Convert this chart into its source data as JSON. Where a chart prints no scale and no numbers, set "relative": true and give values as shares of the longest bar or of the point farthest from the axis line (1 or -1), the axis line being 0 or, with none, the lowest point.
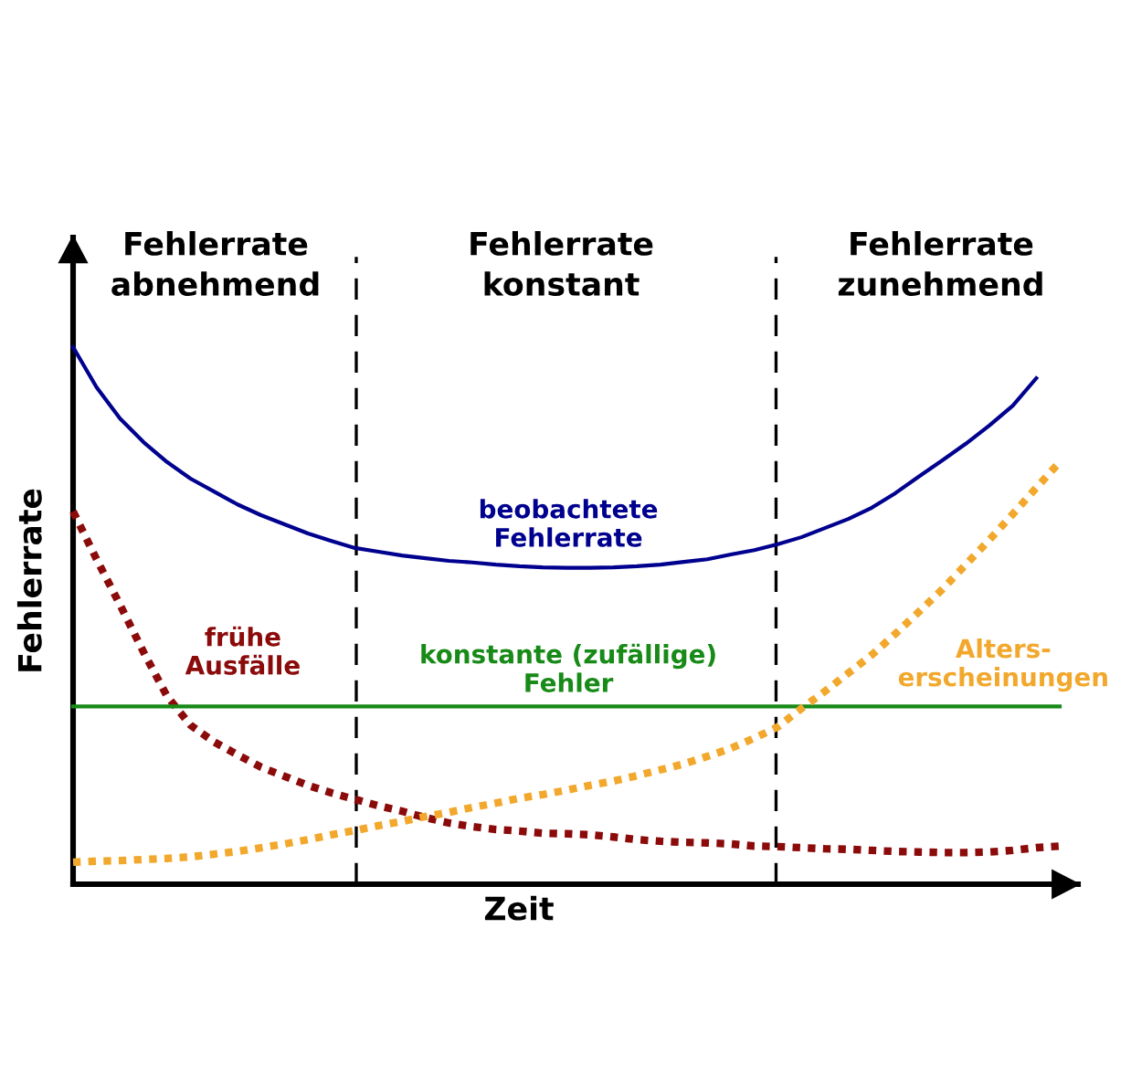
{
  "chart_data": {
    "type": "line",
    "relative": true,
    "xlabel": "Zeit",
    "ylabel": "Fehlerrate",
    "annotations": [
      "Fehlerrate\nabnehmend",
      "Fehlerrate\nkonstant",
      "Fehlerrate\nzunehmend"
    ],
    "categories": [
      null,
      null,
      null,
      null,
      null,
      null,
      null,
      null,
      null,
      null,
      null,
      null,
      null,
      null,
      null,
      null,
      null,
      null,
      null,
      null,
      null,
      null,
      null,
      null,
      null,
      null,
      null,
      null,
      null,
      null,
      null,
      null,
      null,
      null,
      null,
      null,
      null,
      null,
      null,
      null,
      null,
      null,
      null
    ],
    "series": [
      {
        "name": "beobachtete\nFehlerrate",
        "color": "#00008f",
        "line_style": "solid",
        "values": [
          1.0,
          0.925,
          0.867,
          0.823,
          0.786,
          0.755,
          0.731,
          0.707,
          0.687,
          0.67,
          0.653,
          0.639,
          0.626,
          0.619,
          0.612,
          0.607,
          0.602,
          0.599,
          0.595,
          0.592,
          0.59,
          0.589,
          0.589,
          0.59,
          0.592,
          0.595,
          0.6,
          0.605,
          0.614,
          0.622,
          0.633,
          0.646,
          0.663,
          0.68,
          0.701,
          0.728,
          0.759,
          0.789,
          0.82,
          0.854,
          0.891,
          0.942,
          null
        ]
      },
      {
        "name": "frühe\nAusfälle",
        "color": "#8b0a0a",
        "line_style": "dotted",
        "values": [
          0.694,
          0.605,
          0.52,
          0.432,
          0.35,
          0.296,
          0.265,
          0.241,
          0.218,
          0.201,
          0.184,
          0.17,
          0.158,
          0.146,
          0.136,
          0.124,
          0.114,
          0.107,
          0.102,
          0.099,
          0.095,
          0.094,
          0.092,
          0.088,
          0.083,
          0.08,
          0.078,
          0.077,
          0.075,
          0.071,
          0.07,
          0.068,
          0.066,
          0.065,
          0.063,
          0.061,
          0.06,
          0.059,
          0.059,
          0.06,
          0.063,
          0.068,
          0.071
        ]
      },
      {
        "name": "konstante (zufällige)\nFehler",
        "color": "#178a17",
        "line_style": "solid",
        "values": [
          0.331,
          0.331,
          0.331,
          0.331,
          0.331,
          0.331,
          0.331,
          0.331,
          0.331,
          0.331,
          0.331,
          0.331,
          0.331,
          0.331,
          0.331,
          0.331,
          0.331,
          0.331,
          0.331,
          0.331,
          0.331,
          0.331,
          0.331,
          0.331,
          0.331,
          0.331,
          0.331,
          0.331,
          0.331,
          0.331,
          0.331,
          0.331,
          0.331,
          0.331,
          0.331,
          0.331,
          0.331,
          0.331,
          0.331,
          0.331,
          0.331,
          0.331,
          0.331
        ]
      },
      {
        "name": "Alters-\nerscheinungen",
        "color": "#f2a82c",
        "line_style": "dotted",
        "values": [
          0.041,
          0.043,
          0.044,
          0.046,
          0.048,
          0.051,
          0.056,
          0.061,
          0.068,
          0.075,
          0.083,
          0.092,
          0.1,
          0.109,
          0.117,
          0.126,
          0.134,
          0.143,
          0.151,
          0.16,
          0.167,
          0.175,
          0.184,
          0.192,
          0.202,
          0.213,
          0.224,
          0.238,
          0.253,
          0.272,
          0.293,
          0.327,
          0.359,
          0.393,
          0.427,
          0.466,
          0.507,
          0.549,
          0.595,
          0.641,
          0.689,
          0.738,
          0.786
        ]
      }
    ]
  }
}
